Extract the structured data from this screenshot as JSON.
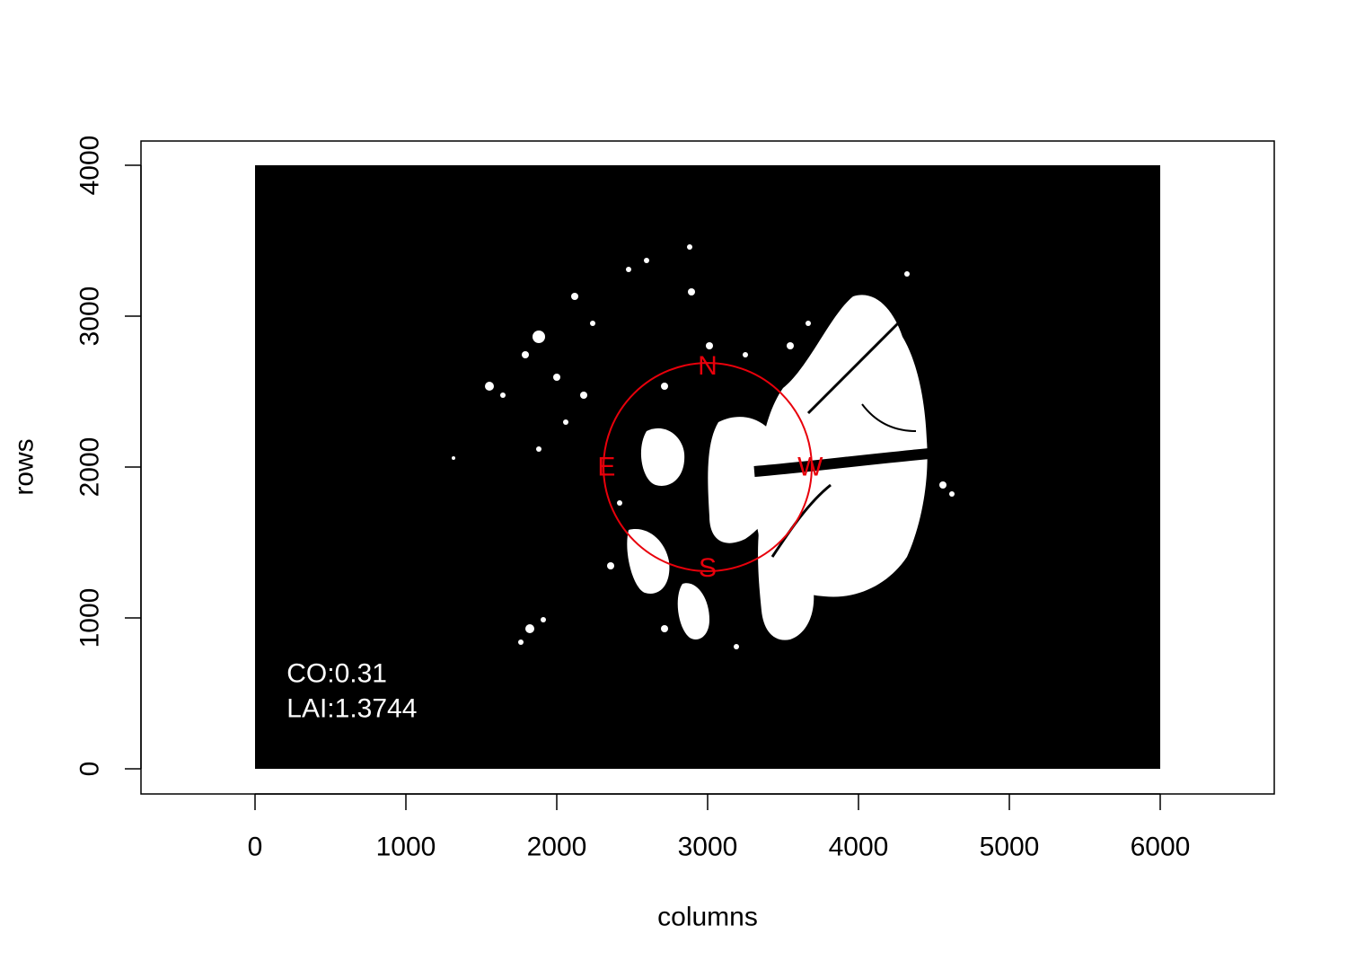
{
  "chart_data": {
    "type": "image",
    "title": "",
    "xlabel": "columns",
    "ylabel": "rows",
    "xlim": [
      -760,
      6760
    ],
    "ylim": [
      -160,
      4180
    ],
    "x_ticks": [
      0,
      1000,
      2000,
      3000,
      4000,
      5000,
      6000
    ],
    "y_ticks": [
      0,
      1000,
      2000,
      3000,
      4000
    ],
    "x_tick_labels": [
      "0",
      "1000",
      "2000",
      "3000",
      "4000",
      "5000",
      "6000"
    ],
    "y_tick_labels": [
      "0",
      "1000",
      "2000",
      "3000",
      "4000"
    ],
    "raster": {
      "columns": 6000,
      "rows": 4000,
      "background_color": "#000000",
      "gap_color": "#ffffff"
    },
    "overlay_circle": {
      "center": [
        3000,
        2000
      ],
      "radius": 690,
      "color": "#e8000b"
    },
    "compass_labels": [
      {
        "text": "N",
        "x": 3000,
        "y": 2670
      },
      {
        "text": "E",
        "x": 2330,
        "y": 2000
      },
      {
        "text": "W",
        "x": 3680,
        "y": 2000
      },
      {
        "text": "S",
        "x": 3000,
        "y": 1330
      }
    ],
    "annotations": [
      {
        "text": "CO:0.31",
        "x": 210,
        "y": 630,
        "color": "#ffffff"
      },
      {
        "text": "LAI:1.3744",
        "x": 210,
        "y": 400,
        "color": "#ffffff"
      }
    ]
  }
}
